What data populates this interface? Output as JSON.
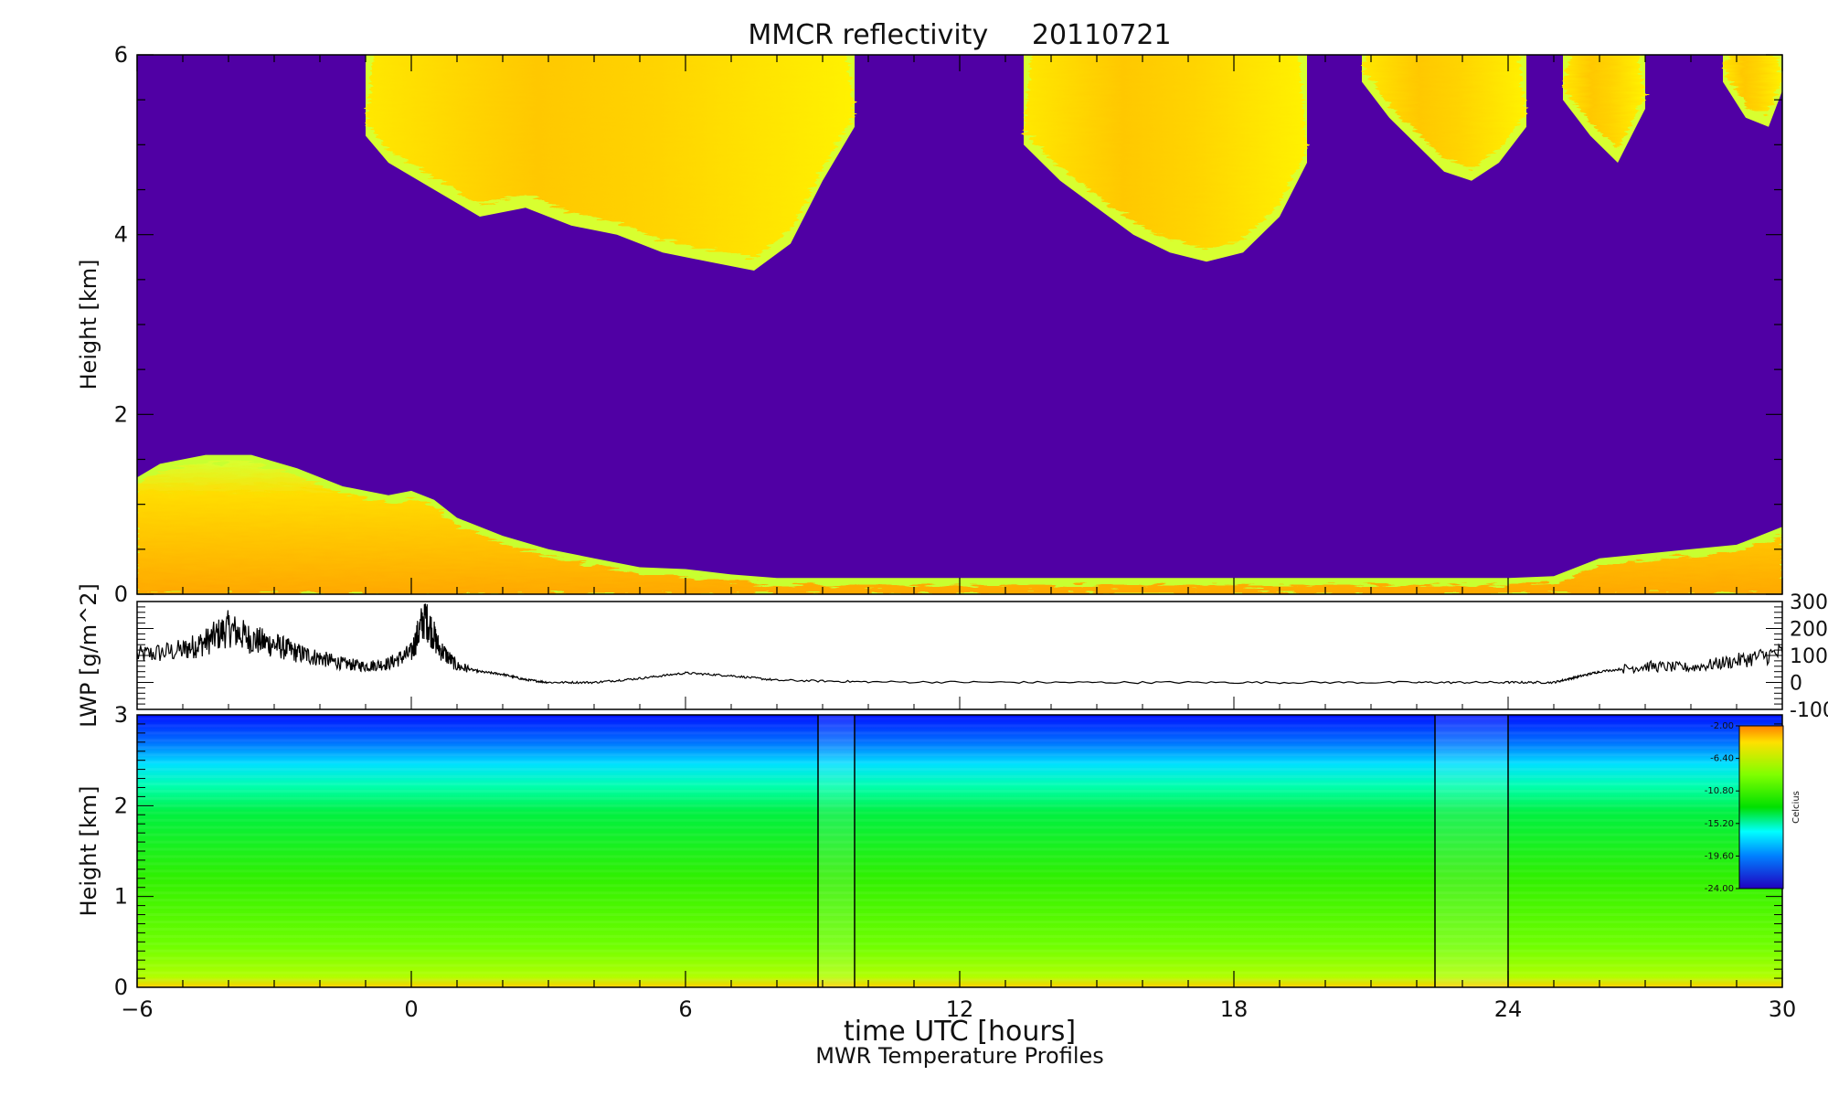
{
  "chart_data": [
    {
      "type": "heatmap",
      "title": "MMCR reflectivity     20110721",
      "ylabel": "Height [km]",
      "xlim": [
        -6,
        30
      ],
      "ylim": [
        0,
        6
      ],
      "yticks": [
        "0",
        "2",
        "4",
        "6"
      ],
      "background_color": "#5000a4",
      "cloud_layers": [
        {
          "name": "upper-cloud-1",
          "x": [
            -1.0,
            -0.5,
            0.5,
            1.5,
            2.5,
            3.5,
            4.5,
            5.5,
            6.5,
            7.5,
            8.3,
            9.0,
            9.7
          ],
          "base": [
            5.1,
            4.8,
            4.5,
            4.2,
            4.3,
            4.1,
            4.0,
            3.8,
            3.7,
            3.6,
            3.9,
            4.6,
            5.2
          ],
          "top": 6.0
        },
        {
          "name": "upper-cloud-2",
          "x": [
            13.4,
            14.2,
            15.0,
            15.8,
            16.6,
            17.4,
            18.2,
            19.0,
            19.6
          ],
          "base": [
            5.0,
            4.6,
            4.3,
            4.0,
            3.8,
            3.7,
            3.8,
            4.2,
            4.8
          ],
          "top": 6.0
        },
        {
          "name": "upper-cloud-3",
          "x": [
            20.8,
            21.4,
            22.0,
            22.6,
            23.2,
            23.8,
            24.4
          ],
          "base": [
            5.7,
            5.3,
            5.0,
            4.7,
            4.6,
            4.8,
            5.2
          ],
          "top": 6.0
        },
        {
          "name": "upper-cloud-4",
          "x": [
            25.2,
            25.8,
            26.4,
            27.0
          ],
          "base": [
            5.5,
            5.1,
            4.8,
            5.4
          ],
          "top": 6.0
        },
        {
          "name": "upper-cloud-5",
          "x": [
            28.7,
            29.2,
            29.7,
            30.0
          ],
          "base": [
            5.7,
            5.3,
            5.2,
            5.6
          ],
          "top": 6.0
        }
      ],
      "boundary_layer": {
        "x": [
          -6,
          -5.5,
          -4.5,
          -3.5,
          -2.5,
          -1.5,
          -0.5,
          0.0,
          0.5,
          1.0,
          2.0,
          3.0,
          4.0,
          5.0,
          6.0,
          7.0,
          8.0,
          10.0,
          14.0,
          18.0,
          22.0,
          24.0,
          25.0,
          26.0,
          27.0,
          28.0,
          29.0,
          30.0
        ],
        "top": [
          1.3,
          1.45,
          1.55,
          1.55,
          1.4,
          1.2,
          1.1,
          1.15,
          1.05,
          0.85,
          0.65,
          0.5,
          0.4,
          0.3,
          0.28,
          0.22,
          0.18,
          0.18,
          0.18,
          0.18,
          0.18,
          0.18,
          0.2,
          0.4,
          0.45,
          0.5,
          0.55,
          0.75
        ]
      }
    },
    {
      "type": "line",
      "ylabel": "LWP [g/m^2]",
      "xlim": [
        -6,
        30
      ],
      "ylim": [
        -100,
        300
      ],
      "yticks_right": [
        "300",
        "200",
        "100",
        "0",
        "-100"
      ],
      "series": [
        {
          "x": [
            -6,
            -5,
            -4.5,
            -4,
            -3.5,
            -3,
            -2.5,
            -2,
            -1.5,
            -1,
            -0.5,
            0,
            0.3,
            0.6,
            1,
            1.5,
            2,
            2.5,
            3,
            4,
            5,
            6,
            7,
            8,
            10,
            14,
            18,
            22,
            24,
            25,
            25.5,
            26,
            27,
            28,
            29,
            30
          ],
          "y": [
            100,
            120,
            150,
            200,
            160,
            140,
            110,
            90,
            70,
            60,
            70,
            110,
            250,
            130,
            60,
            40,
            30,
            10,
            0,
            0,
            15,
            35,
            25,
            8,
            2,
            0,
            0,
            0,
            0,
            0,
            20,
            40,
            60,
            55,
            80,
            110
          ]
        }
      ]
    },
    {
      "type": "heatmap",
      "title": "MWR Temperature Profiles",
      "ylabel": "Height [km]",
      "xlabel": "time UTC [hours]",
      "xlim": [
        -6,
        30
      ],
      "ylim": [
        0,
        3
      ],
      "xticks": [
        "-6",
        "0",
        "6",
        "12",
        "18",
        "24",
        "30"
      ],
      "yticks": [
        "0",
        "1",
        "2",
        "3"
      ],
      "missing_intervals": [
        [
          8.9,
          9.7
        ],
        [
          22.4,
          24.0
        ]
      ],
      "colorbar": {
        "label": "Celcius",
        "ticks": [
          "-2.00",
          "-6.40",
          "-10.80",
          "-15.20",
          "-19.60",
          "-24.00"
        ],
        "range": [
          -24.0,
          -2.0
        ]
      }
    }
  ]
}
